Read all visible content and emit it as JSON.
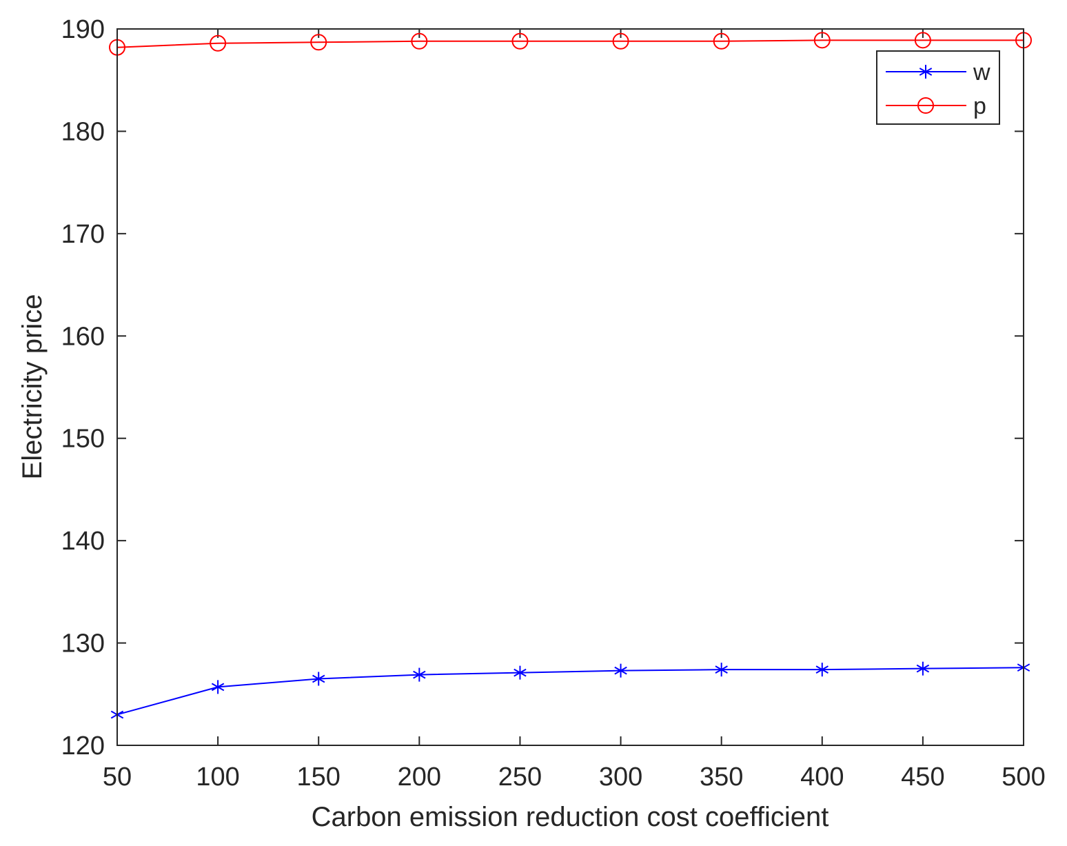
{
  "chart_data": {
    "type": "line",
    "title": "",
    "xlabel": "Carbon emission reduction cost coefficient",
    "ylabel": "Electricity price",
    "xlim": [
      50,
      500
    ],
    "ylim": [
      120,
      190
    ],
    "x_ticks": [
      50,
      100,
      150,
      200,
      250,
      300,
      350,
      400,
      450,
      500
    ],
    "y_ticks": [
      120,
      130,
      140,
      150,
      160,
      170,
      180,
      190
    ],
    "grid": false,
    "legend_position": "top-right",
    "x": [
      50,
      100,
      150,
      200,
      250,
      300,
      350,
      400,
      450,
      500
    ],
    "series": [
      {
        "name": "w",
        "color": "#0000ff",
        "marker": "asterisk",
        "values": [
          123.0,
          125.7,
          126.5,
          126.9,
          127.1,
          127.3,
          127.4,
          127.4,
          127.5,
          127.6
        ]
      },
      {
        "name": "p",
        "color": "#ff0000",
        "marker": "circle",
        "values": [
          188.2,
          188.6,
          188.7,
          188.8,
          188.8,
          188.8,
          188.8,
          188.9,
          188.9,
          188.9
        ]
      }
    ]
  }
}
